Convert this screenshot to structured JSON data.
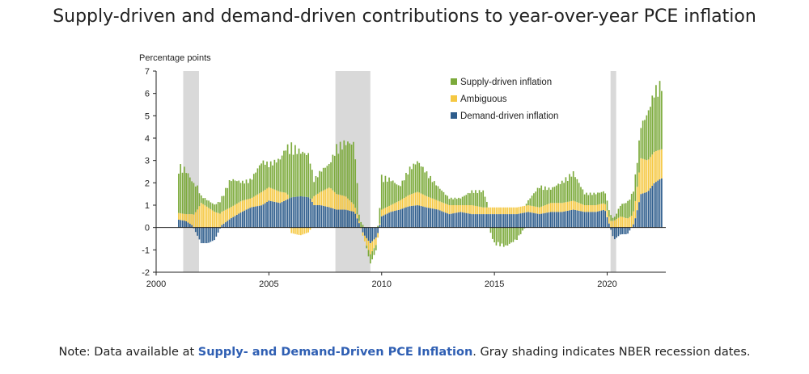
{
  "title": "Supply-driven and demand-driven contributions to year-over-year PCE inflation",
  "note": {
    "prefix": "Note: Data available at ",
    "link": "Supply- and Demand-Driven PCE Inflation",
    "suffix": ". Gray shading indicates NBER recession dates."
  },
  "colors": {
    "supply": "#7caa3b",
    "ambiguous": "#f5c842",
    "demand": "#2e5d8c",
    "recession": "#d9d9d9"
  },
  "chart_data": {
    "type": "bar",
    "stacked": true,
    "ylabel": "Percentage points",
    "xlim": [
      2000,
      2022.6
    ],
    "ylim": [
      -2,
      7
    ],
    "yticks": [
      "7",
      "6",
      "5",
      "4",
      "3",
      "2",
      "1",
      "0",
      "-1",
      "-2"
    ],
    "xticks": [
      "2000",
      "2005",
      "2010",
      "2015",
      "2020"
    ],
    "recessions": [
      [
        2001.2,
        2001.9
      ],
      [
        2007.95,
        2009.5
      ],
      [
        2020.15,
        2020.4
      ]
    ],
    "legend": [
      "Supply-driven inflation",
      "Ambiguous",
      "Demand-driven inflation"
    ],
    "series": [
      {
        "name": "Demand-driven inflation",
        "key": "demand",
        "points": [
          [
            2001.0,
            0.35
          ],
          [
            2001.3,
            0.3
          ],
          [
            2001.6,
            0.1
          ],
          [
            2001.8,
            -0.3
          ],
          [
            2002.0,
            -0.7
          ],
          [
            2002.3,
            -0.7
          ],
          [
            2002.6,
            -0.55
          ],
          [
            2002.9,
            0.1
          ],
          [
            2003.3,
            0.4
          ],
          [
            2003.8,
            0.7
          ],
          [
            2004.2,
            0.9
          ],
          [
            2004.7,
            1.0
          ],
          [
            2005.0,
            1.2
          ],
          [
            2005.5,
            1.1
          ],
          [
            2005.8,
            1.25
          ],
          [
            2006.0,
            1.35
          ],
          [
            2006.4,
            1.4
          ],
          [
            2006.8,
            1.35
          ],
          [
            2007.0,
            1.0
          ],
          [
            2007.3,
            1.0
          ],
          [
            2007.7,
            0.9
          ],
          [
            2008.0,
            0.8
          ],
          [
            2008.4,
            0.8
          ],
          [
            2008.8,
            0.7
          ],
          [
            2009.0,
            0.2
          ],
          [
            2009.2,
            -0.3
          ],
          [
            2009.5,
            -0.7
          ],
          [
            2009.8,
            -0.4
          ],
          [
            2010.0,
            0.5
          ],
          [
            2010.4,
            0.7
          ],
          [
            2010.8,
            0.8
          ],
          [
            2011.2,
            0.95
          ],
          [
            2011.6,
            1.0
          ],
          [
            2012.0,
            0.9
          ],
          [
            2012.5,
            0.8
          ],
          [
            2013.0,
            0.6
          ],
          [
            2013.5,
            0.7
          ],
          [
            2014.0,
            0.6
          ],
          [
            2014.5,
            0.6
          ],
          [
            2015.0,
            0.6
          ],
          [
            2015.5,
            0.6
          ],
          [
            2016.0,
            0.6
          ],
          [
            2016.5,
            0.7
          ],
          [
            2017.0,
            0.6
          ],
          [
            2017.5,
            0.7
          ],
          [
            2018.0,
            0.7
          ],
          [
            2018.5,
            0.8
          ],
          [
            2019.0,
            0.7
          ],
          [
            2019.5,
            0.7
          ],
          [
            2019.9,
            0.8
          ],
          [
            2020.3,
            -0.55
          ],
          [
            2020.6,
            -0.3
          ],
          [
            2020.9,
            -0.3
          ],
          [
            2021.2,
            0.2
          ],
          [
            2021.5,
            1.5
          ],
          [
            2021.8,
            1.6
          ],
          [
            2022.1,
            2.0
          ],
          [
            2022.4,
            2.2
          ]
        ]
      },
      {
        "name": "Ambiguous",
        "key": "ambiguous",
        "points": [
          [
            2001.0,
            0.3
          ],
          [
            2001.3,
            0.3
          ],
          [
            2001.6,
            0.5
          ],
          [
            2001.8,
            0.75
          ],
          [
            2002.0,
            1.1
          ],
          [
            2002.3,
            0.9
          ],
          [
            2002.6,
            0.7
          ],
          [
            2002.9,
            0.6
          ],
          [
            2003.3,
            0.5
          ],
          [
            2003.8,
            0.5
          ],
          [
            2004.2,
            0.4
          ],
          [
            2004.7,
            0.6
          ],
          [
            2005.0,
            0.6
          ],
          [
            2005.5,
            0.5
          ],
          [
            2005.8,
            0.3
          ],
          [
            2006.0,
            -0.25
          ],
          [
            2006.4,
            -0.35
          ],
          [
            2006.8,
            -0.2
          ],
          [
            2007.0,
            0.4
          ],
          [
            2007.3,
            0.6
          ],
          [
            2007.7,
            0.9
          ],
          [
            2008.0,
            0.7
          ],
          [
            2008.4,
            0.6
          ],
          [
            2008.8,
            0.3
          ],
          [
            2009.0,
            0.1
          ],
          [
            2009.2,
            -0.2
          ],
          [
            2009.5,
            -0.5
          ],
          [
            2009.8,
            -0.3
          ],
          [
            2010.0,
            0.3
          ],
          [
            2010.4,
            0.3
          ],
          [
            2010.8,
            0.4
          ],
          [
            2011.2,
            0.5
          ],
          [
            2011.6,
            0.6
          ],
          [
            2012.0,
            0.5
          ],
          [
            2012.5,
            0.4
          ],
          [
            2013.0,
            0.4
          ],
          [
            2013.5,
            0.3
          ],
          [
            2014.0,
            0.4
          ],
          [
            2014.5,
            0.3
          ],
          [
            2015.0,
            0.3
          ],
          [
            2015.5,
            0.3
          ],
          [
            2016.0,
            0.3
          ],
          [
            2016.5,
            0.3
          ],
          [
            2017.0,
            0.3
          ],
          [
            2017.5,
            0.4
          ],
          [
            2018.0,
            0.4
          ],
          [
            2018.5,
            0.4
          ],
          [
            2019.0,
            0.3
          ],
          [
            2019.5,
            0.3
          ],
          [
            2019.9,
            0.3
          ],
          [
            2020.3,
            0.3
          ],
          [
            2020.6,
            0.5
          ],
          [
            2020.9,
            0.4
          ],
          [
            2021.2,
            0.6
          ],
          [
            2021.5,
            1.6
          ],
          [
            2021.8,
            1.4
          ],
          [
            2022.1,
            1.4
          ],
          [
            2022.4,
            1.3
          ]
        ]
      },
      {
        "name": "Supply-driven inflation",
        "key": "supply",
        "points": [
          [
            2001.0,
            2.0
          ],
          [
            2001.3,
            1.9
          ],
          [
            2001.6,
            1.4
          ],
          [
            2001.8,
            1.1
          ],
          [
            2002.0,
            0.3
          ],
          [
            2002.3,
            0.3
          ],
          [
            2002.6,
            0.3
          ],
          [
            2002.9,
            0.6
          ],
          [
            2003.3,
            1.2
          ],
          [
            2003.8,
            0.8
          ],
          [
            2004.2,
            0.8
          ],
          [
            2004.7,
            1.3
          ],
          [
            2005.0,
            1.0
          ],
          [
            2005.5,
            1.4
          ],
          [
            2005.8,
            2.0
          ],
          [
            2006.0,
            2.2
          ],
          [
            2006.4,
            1.9
          ],
          [
            2006.8,
            1.8
          ],
          [
            2007.0,
            0.7
          ],
          [
            2007.3,
            0.9
          ],
          [
            2007.7,
            1.0
          ],
          [
            2008.0,
            2.0
          ],
          [
            2008.4,
            2.3
          ],
          [
            2008.8,
            2.6
          ],
          [
            2009.0,
            0.3
          ],
          [
            2009.2,
            0.1
          ],
          [
            2009.5,
            -0.4
          ],
          [
            2009.8,
            -0.2
          ],
          [
            2010.0,
            1.4
          ],
          [
            2010.4,
            1.1
          ],
          [
            2010.8,
            0.6
          ],
          [
            2011.2,
            1.1
          ],
          [
            2011.6,
            1.3
          ],
          [
            2012.0,
            1.0
          ],
          [
            2012.5,
            0.6
          ],
          [
            2013.0,
            0.3
          ],
          [
            2013.5,
            0.3
          ],
          [
            2014.0,
            0.6
          ],
          [
            2014.5,
            0.7
          ],
          [
            2015.0,
            -0.7
          ],
          [
            2015.5,
            -0.8
          ],
          [
            2016.0,
            -0.5
          ],
          [
            2016.5,
            0.2
          ],
          [
            2017.0,
            0.9
          ],
          [
            2017.5,
            0.6
          ],
          [
            2018.0,
            0.9
          ],
          [
            2018.5,
            1.2
          ],
          [
            2019.0,
            0.5
          ],
          [
            2019.5,
            0.5
          ],
          [
            2019.9,
            0.5
          ],
          [
            2020.3,
            0.1
          ],
          [
            2020.6,
            0.5
          ],
          [
            2020.9,
            0.7
          ],
          [
            2021.2,
            1.0
          ],
          [
            2021.5,
            1.4
          ],
          [
            2021.8,
            2.0
          ],
          [
            2022.1,
            2.6
          ],
          [
            2022.4,
            2.8
          ]
        ]
      }
    ]
  }
}
